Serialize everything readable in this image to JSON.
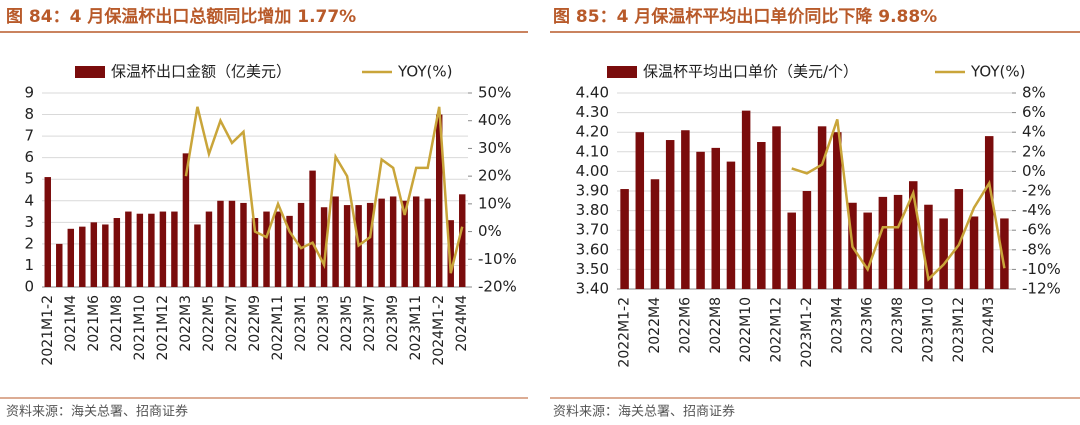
{
  "chart_data": [
    {
      "type": "bar-line",
      "title": "图 84：4 月保温杯出口总额同比增加 1.77%",
      "source": "资料来源：海关总署、招商证券",
      "categories": [
        "2021M1-2",
        null,
        "2021M4",
        null,
        "2021M6",
        null,
        "2021M8",
        null,
        "2021M10",
        null,
        "2021M12",
        null,
        "2022M3",
        null,
        "2022M5",
        null,
        "2022M7",
        null,
        "2022M9",
        null,
        "2022M11",
        null,
        "2023M1",
        null,
        "2023M3",
        null,
        "2023M5",
        null,
        "2023M7",
        null,
        "2023M9",
        null,
        "2023M11",
        null,
        "2024M1-2",
        null,
        "2024M4"
      ],
      "series": [
        {
          "name": "保温杯出口金额（亿美元）",
          "color": "#7a0c0c",
          "axis": "y",
          "values": [
            5.1,
            2.0,
            2.7,
            2.8,
            3.0,
            2.9,
            3.2,
            3.5,
            3.4,
            3.4,
            3.5,
            3.5,
            6.2,
            2.9,
            3.5,
            4.0,
            4.0,
            3.9,
            3.2,
            3.5,
            3.5,
            3.3,
            3.9,
            5.4,
            3.7,
            4.2,
            3.8,
            3.8,
            3.9,
            4.1,
            4.2,
            4.0,
            4.2,
            4.1,
            8.0,
            3.1,
            4.3
          ]
        },
        {
          "name": "YOY(%)",
          "color": "#c9a53a",
          "axis": "y2",
          "values": [
            null,
            null,
            null,
            null,
            null,
            null,
            null,
            null,
            null,
            null,
            null,
            null,
            20,
            45,
            28,
            40,
            32,
            36,
            0,
            -2,
            10,
            0,
            -6,
            -4,
            -12,
            27,
            20,
            -5,
            -2,
            26,
            23,
            6,
            23,
            23,
            45,
            -15,
            1.77
          ]
        }
      ],
      "ylim": [
        0,
        9
      ],
      "yticks": [
        0,
        1,
        2,
        3,
        4,
        5,
        6,
        7,
        8,
        9
      ],
      "y2lim": [
        -20,
        50
      ],
      "y2ticks": [
        {
          "value": -20,
          "label": "-20%"
        },
        {
          "value": -10,
          "label": "-10%"
        },
        {
          "value": 0,
          "label": "0%"
        },
        {
          "value": 10,
          "label": "10%"
        },
        {
          "value": 20,
          "label": "20%"
        },
        {
          "value": 30,
          "label": "30%"
        },
        {
          "value": 40,
          "label": "40%"
        },
        {
          "value": 50,
          "label": "50%"
        }
      ],
      "grid": true
    },
    {
      "type": "bar-line",
      "title": "图 85：4 月保温杯平均出口单价同比下降 9.88%",
      "source": "资料来源：海关总署、招商证券",
      "categories": [
        "2022M1-2",
        null,
        "2022M4",
        null,
        "2022M6",
        null,
        "2022M8",
        null,
        "2022M10",
        null,
        "2022M12",
        null,
        "2023M1-2",
        null,
        "2023M4",
        null,
        "2023M6",
        null,
        "2023M8",
        null,
        "2023M10",
        null,
        "2023M12",
        null,
        "2024M3",
        null
      ],
      "series": [
        {
          "name": "保温杯平均出口单价（美元/个）",
          "color": "#7a0c0c",
          "axis": "y",
          "values": [
            3.91,
            4.2,
            3.96,
            4.16,
            4.21,
            4.1,
            4.12,
            4.05,
            4.31,
            4.15,
            4.23,
            3.79,
            3.9,
            4.23,
            4.2,
            3.84,
            3.79,
            3.87,
            3.88,
            3.95,
            3.83,
            3.76,
            3.91,
            3.77,
            4.18,
            3.76
          ]
        },
        {
          "name": "YOY(%)",
          "color": "#c9a53a",
          "axis": "y2",
          "values": [
            null,
            null,
            null,
            null,
            null,
            null,
            null,
            null,
            null,
            null,
            null,
            0.3,
            -0.2,
            0.7,
            5.3,
            -7.7,
            -10,
            -5.7,
            -5.7,
            -2.2,
            -11,
            -9.5,
            -7.5,
            -3.7,
            -1.2,
            -9.88
          ]
        }
      ],
      "ylim": [
        3.4,
        4.4
      ],
      "yticks": [
        {
          "value": 3.4,
          "label": "3.40"
        },
        {
          "value": 3.5,
          "label": "3.50"
        },
        {
          "value": 3.6,
          "label": "3.60"
        },
        {
          "value": 3.7,
          "label": "3.70"
        },
        {
          "value": 3.8,
          "label": "3.80"
        },
        {
          "value": 3.9,
          "label": "3.90"
        },
        {
          "value": 4.0,
          "label": "4.00"
        },
        {
          "value": 4.1,
          "label": "4.10"
        },
        {
          "value": 4.2,
          "label": "4.20"
        },
        {
          "value": 4.3,
          "label": "4.30"
        },
        {
          "value": 4.4,
          "label": "4.40"
        }
      ],
      "y2lim": [
        -12,
        8
      ],
      "y2ticks": [
        {
          "value": -12,
          "label": "-12%"
        },
        {
          "value": -10,
          "label": "-10%"
        },
        {
          "value": -8,
          "label": "-8%"
        },
        {
          "value": -6,
          "label": "-6%"
        },
        {
          "value": -4,
          "label": "-4%"
        },
        {
          "value": -2,
          "label": "-2%"
        },
        {
          "value": 0,
          "label": "0%"
        },
        {
          "value": 2,
          "label": "2%"
        },
        {
          "value": 4,
          "label": "4%"
        },
        {
          "value": 6,
          "label": "6%"
        },
        {
          "value": 8,
          "label": "8%"
        }
      ],
      "grid": true
    }
  ]
}
